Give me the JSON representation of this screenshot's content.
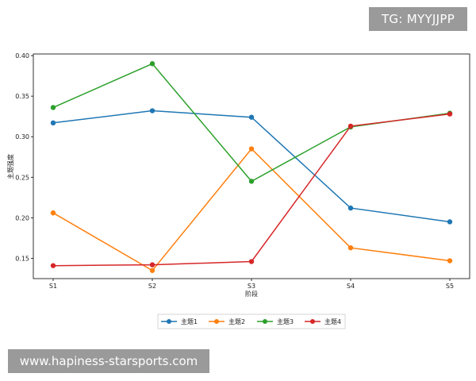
{
  "watermark_top": "TG: MYYJJPP",
  "watermark_bottom": "www.hapiness-starsports.com",
  "chart_data": {
    "type": "line",
    "title": "",
    "xlabel": "阶段",
    "ylabel": "主题强度",
    "categories": [
      "S1",
      "S2",
      "S3",
      "S4",
      "S5"
    ],
    "ylim": [
      0.125,
      0.402
    ],
    "yticks": [
      0.15,
      0.2,
      0.25,
      0.3,
      0.35,
      0.4
    ],
    "ytick_labels": [
      "0.15",
      "0.20",
      "0.25",
      "0.30",
      "0.35",
      "0.40"
    ],
    "grid": false,
    "legend_position": "bottom-center",
    "series": [
      {
        "name": "主题1",
        "color": "#1f77b4",
        "values": [
          0.317,
          0.332,
          0.324,
          0.212,
          0.195
        ]
      },
      {
        "name": "主题2",
        "color": "#ff7f0e",
        "values": [
          0.206,
          0.135,
          0.285,
          0.163,
          0.147
        ]
      },
      {
        "name": "主题3",
        "color": "#2ca02c",
        "values": [
          0.336,
          0.39,
          0.245,
          0.312,
          0.329
        ]
      },
      {
        "name": "主题4",
        "color": "#d62728",
        "values": [
          0.141,
          0.142,
          0.146,
          0.313,
          0.328
        ]
      }
    ]
  }
}
